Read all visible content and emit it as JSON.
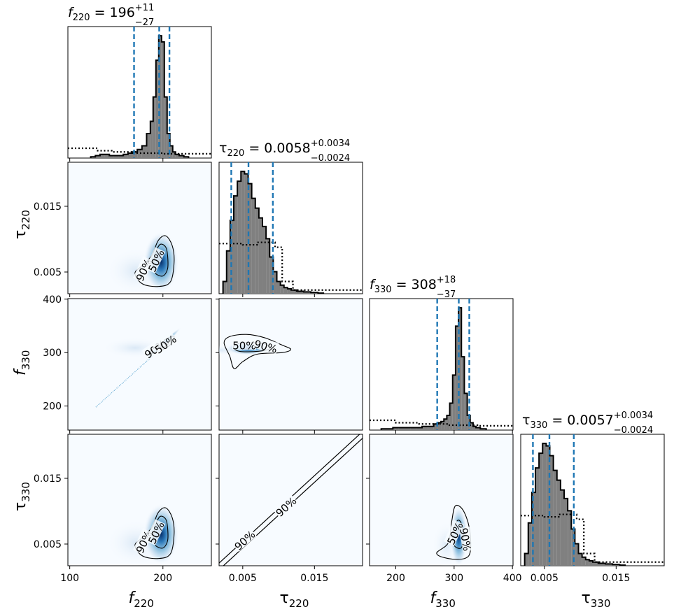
{
  "chart_data": {
    "type": "corner",
    "parameters": [
      {
        "symbol": "f",
        "sub": "220",
        "range": [
          98,
          252
        ],
        "ticks": [
          100,
          200
        ],
        "tick_labels": [
          "100",
          "200"
        ],
        "median": "196",
        "plus": "+11",
        "minus": "−27"
      },
      {
        "symbol": "τ",
        "sub": "220",
        "range": [
          0.0017,
          0.0217
        ],
        "ticks": [
          0.005,
          0.015
        ],
        "tick_labels": [
          "0.005",
          "0.015"
        ],
        "median": "0.0058",
        "plus": "+0.0034",
        "minus": "−0.0024"
      },
      {
        "symbol": "f",
        "sub": "330",
        "range": [
          155,
          401
        ],
        "ticks": [
          200,
          300,
          400
        ],
        "tick_labels": [
          "200",
          "300",
          "400"
        ],
        "median": "308",
        "plus": "+18",
        "minus": "−37"
      },
      {
        "symbol": "τ",
        "sub": "330",
        "range": [
          0.0017,
          0.0217
        ],
        "ticks": [
          0.005,
          0.015
        ],
        "tick_labels": [
          "0.005",
          "0.015"
        ],
        "median": "0.0057",
        "plus": "+0.0034",
        "minus": "−0.0024"
      }
    ],
    "histograms": [
      {
        "param": 0,
        "quantiles": [
          169,
          196,
          207
        ],
        "centers": [
          125,
          130,
          135,
          140,
          145,
          150,
          155,
          160,
          165,
          170,
          175,
          180,
          185,
          188,
          191,
          194,
          197,
          200,
          203,
          206,
          209,
          212,
          215,
          220,
          225
        ],
        "density": [
          0.01,
          0.02,
          0.03,
          0.03,
          0.02,
          0.02,
          0.02,
          0.03,
          0.04,
          0.05,
          0.07,
          0.1,
          0.2,
          0.3,
          0.5,
          0.8,
          1.0,
          0.95,
          0.5,
          0.2,
          0.1,
          0.05,
          0.03,
          0.02,
          0.01
        ],
        "prior": [
          [
            98,
            0.08
          ],
          [
            130,
            0.08
          ],
          [
            130,
            0.06
          ],
          [
            145,
            0.06
          ],
          [
            145,
            0.05
          ],
          [
            170,
            0.05
          ],
          [
            170,
            0.04
          ],
          [
            200,
            0.04
          ],
          [
            200,
            0.035
          ],
          [
            252,
            0.035
          ]
        ]
      },
      {
        "param": 1,
        "quantiles": [
          0.0034,
          0.0058,
          0.0092
        ],
        "centers": [
          0.0025,
          0.003,
          0.0035,
          0.004,
          0.0045,
          0.005,
          0.0055,
          0.006,
          0.0065,
          0.007,
          0.0075,
          0.008,
          0.0085,
          0.009,
          0.0095,
          0.01,
          0.0105,
          0.011,
          0.0115,
          0.012,
          0.013,
          0.014,
          0.015,
          0.016
        ],
        "density": [
          0.1,
          0.35,
          0.6,
          0.8,
          0.92,
          1.0,
          0.98,
          0.9,
          0.78,
          0.7,
          0.62,
          0.55,
          0.45,
          0.3,
          0.18,
          0.1,
          0.07,
          0.05,
          0.04,
          0.03,
          0.02,
          0.015,
          0.01,
          0.005
        ],
        "prior": [
          [
            0.0017,
            0.41
          ],
          [
            0.005,
            0.41
          ],
          [
            0.005,
            0.4
          ],
          [
            0.007,
            0.4
          ],
          [
            0.007,
            0.42
          ],
          [
            0.0095,
            0.42
          ],
          [
            0.0095,
            0.38
          ],
          [
            0.0105,
            0.38
          ],
          [
            0.0105,
            0.1
          ],
          [
            0.012,
            0.1
          ],
          [
            0.012,
            0.03
          ],
          [
            0.0217,
            0.03
          ]
        ]
      },
      {
        "param": 2,
        "quantiles": [
          271,
          308,
          326
        ],
        "centers": [
          180,
          190,
          200,
          210,
          220,
          230,
          240,
          250,
          260,
          270,
          275,
          280,
          285,
          290,
          295,
          300,
          305,
          310,
          315,
          320,
          325,
          330,
          335,
          340,
          350
        ],
        "density": [
          0.01,
          0.01,
          0.02,
          0.02,
          0.02,
          0.02,
          0.02,
          0.03,
          0.03,
          0.05,
          0.06,
          0.07,
          0.09,
          0.12,
          0.22,
          0.45,
          0.85,
          1.0,
          0.6,
          0.3,
          0.12,
          0.06,
          0.03,
          0.02,
          0.01
        ],
        "prior": [
          [
            155,
            0.08
          ],
          [
            200,
            0.08
          ],
          [
            200,
            0.06
          ],
          [
            240,
            0.06
          ],
          [
            240,
            0.05
          ],
          [
            290,
            0.05
          ],
          [
            290,
            0.04
          ],
          [
            340,
            0.04
          ],
          [
            340,
            0.035
          ],
          [
            401,
            0.035
          ]
        ]
      },
      {
        "param": 3,
        "quantiles": [
          0.0034,
          0.0057,
          0.0091
        ],
        "centers": [
          0.0025,
          0.003,
          0.0035,
          0.004,
          0.0045,
          0.005,
          0.0055,
          0.006,
          0.0065,
          0.007,
          0.0075,
          0.008,
          0.0085,
          0.009,
          0.0095,
          0.01,
          0.0105,
          0.011,
          0.0115,
          0.012,
          0.013,
          0.014,
          0.015,
          0.016
        ],
        "density": [
          0.1,
          0.35,
          0.6,
          0.8,
          0.92,
          1.0,
          0.98,
          0.9,
          0.78,
          0.7,
          0.62,
          0.55,
          0.45,
          0.3,
          0.18,
          0.1,
          0.07,
          0.05,
          0.04,
          0.03,
          0.02,
          0.015,
          0.01,
          0.005
        ],
        "prior": [
          [
            0.0017,
            0.41
          ],
          [
            0.005,
            0.41
          ],
          [
            0.005,
            0.4
          ],
          [
            0.007,
            0.4
          ],
          [
            0.007,
            0.42
          ],
          [
            0.0095,
            0.42
          ],
          [
            0.0095,
            0.38
          ],
          [
            0.0105,
            0.38
          ],
          [
            0.0105,
            0.1
          ],
          [
            0.012,
            0.1
          ],
          [
            0.012,
            0.03
          ],
          [
            0.0217,
            0.03
          ]
        ]
      }
    ],
    "joint_panels": [
      {
        "row": 1,
        "col": 0,
        "kind": "blob",
        "center": [
          198,
          0.0065
        ],
        "spread": [
          9,
          0.0022
        ],
        "c50": [
          [
            192,
            0.0048
          ],
          [
            200,
            0.0044
          ],
          [
            205,
            0.0055
          ],
          [
            205,
            0.0075
          ],
          [
            203,
            0.0088
          ],
          [
            197,
            0.0092
          ],
          [
            192,
            0.0078
          ],
          [
            190,
            0.006
          ]
        ],
        "c90": [
          [
            170,
            0.0048
          ],
          [
            178,
            0.0032
          ],
          [
            195,
            0.0028
          ],
          [
            208,
            0.0035
          ],
          [
            212,
            0.0065
          ],
          [
            210,
            0.009
          ],
          [
            203,
            0.0105
          ],
          [
            195,
            0.0098
          ],
          [
            188,
            0.0075
          ],
          [
            178,
            0.006
          ]
        ],
        "labels": [
          "90%",
          "50%"
        ]
      },
      {
        "row": 2,
        "col": 0,
        "kind": "ridge",
        "center": [
          200,
          316
        ],
        "spread": [
          10,
          12
        ],
        "c50": [
          [
            196,
            308
          ],
          [
            203,
            312
          ],
          [
            206,
            318
          ],
          [
            199,
            315
          ]
        ],
        "c90": [
          [
            185,
            298
          ],
          [
            198,
            304
          ],
          [
            208,
            315
          ],
          [
            212,
            330
          ],
          [
            204,
            326
          ],
          [
            192,
            311
          ]
        ],
        "labels": [
          "90%",
          "50%"
        ]
      },
      {
        "row": 2,
        "col": 1,
        "kind": "blob",
        "center": [
          0.0057,
          308
        ],
        "spread": [
          0.0014,
          6
        ],
        "c50": [
          [
            0.0037,
            310
          ],
          [
            0.0047,
            302
          ],
          [
            0.0075,
            303
          ],
          [
            0.0089,
            309
          ],
          [
            0.0075,
            318
          ],
          [
            0.0048,
            318
          ]
        ],
        "c90": [
          [
            0.0024,
            318
          ],
          [
            0.0032,
            293
          ],
          [
            0.0038,
            270
          ],
          [
            0.005,
            283
          ],
          [
            0.007,
            297
          ],
          [
            0.0105,
            300
          ],
          [
            0.0117,
            306
          ],
          [
            0.0105,
            314
          ],
          [
            0.008,
            328
          ],
          [
            0.0055,
            334
          ],
          [
            0.0032,
            330
          ]
        ],
        "labels": [
          "50%",
          "90%"
        ]
      },
      {
        "row": 3,
        "col": 0,
        "kind": "blob",
        "center": [
          198,
          0.0065
        ],
        "spread": [
          9,
          0.0022
        ],
        "c50": [
          [
            192,
            0.0048
          ],
          [
            200,
            0.0044
          ],
          [
            205,
            0.0055
          ],
          [
            205,
            0.0075
          ],
          [
            203,
            0.0088
          ],
          [
            197,
            0.0092
          ],
          [
            192,
            0.0078
          ],
          [
            190,
            0.006
          ]
        ],
        "c90": [
          [
            170,
            0.0048
          ],
          [
            178,
            0.0032
          ],
          [
            195,
            0.0028
          ],
          [
            208,
            0.0035
          ],
          [
            212,
            0.0065
          ],
          [
            210,
            0.009
          ],
          [
            203,
            0.0105
          ],
          [
            195,
            0.0098
          ],
          [
            188,
            0.0075
          ],
          [
            178,
            0.006
          ]
        ],
        "labels": [
          "90%",
          "50%"
        ]
      },
      {
        "row": 3,
        "col": 1,
        "kind": "diagonal",
        "labels": [
          "90%",
          "90%"
        ]
      },
      {
        "row": 3,
        "col": 2,
        "kind": "blob",
        "center": [
          308,
          0.0062
        ],
        "spread": [
          7,
          0.0022
        ],
        "c50": [
          [
            300,
            0.0048
          ],
          [
            312,
            0.0044
          ],
          [
            316,
            0.006
          ],
          [
            312,
            0.0082
          ],
          [
            305,
            0.0085
          ],
          [
            298,
            0.0065
          ]
        ],
        "c90": [
          [
            270,
            0.0036
          ],
          [
            290,
            0.0028
          ],
          [
            318,
            0.0028
          ],
          [
            328,
            0.004
          ],
          [
            326,
            0.0075
          ],
          [
            315,
            0.0102
          ],
          [
            302,
            0.0108
          ],
          [
            296,
            0.0085
          ],
          [
            290,
            0.0052
          ]
        ],
        "labels": [
          "50%",
          "90%"
        ]
      }
    ]
  }
}
